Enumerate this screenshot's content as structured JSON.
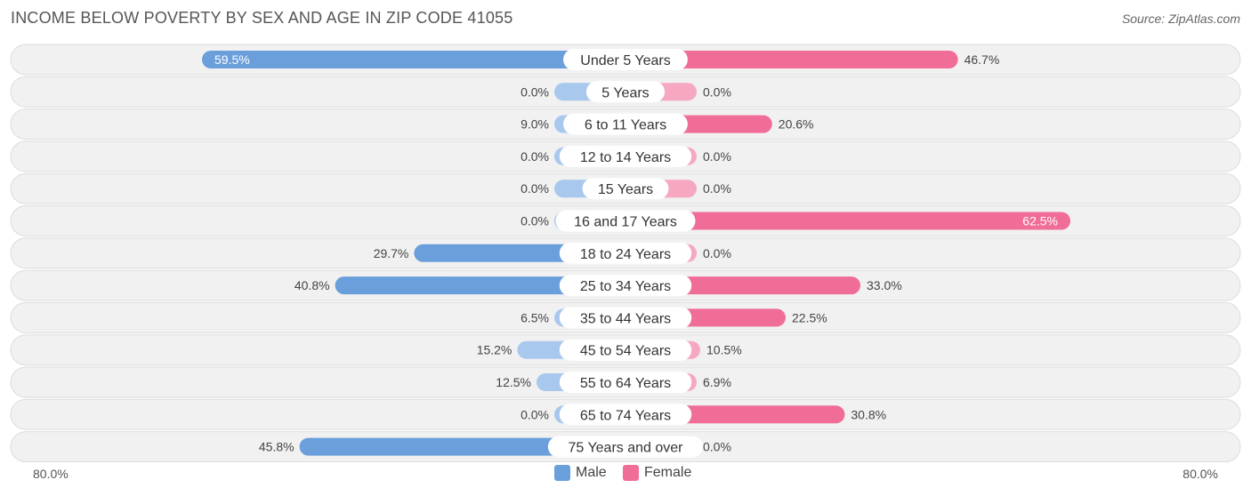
{
  "title": "INCOME BELOW POVERTY BY SEX AND AGE IN ZIP CODE 41055",
  "source": "Source: ZipAtlas.com",
  "colors": {
    "male": "#6a9fdc",
    "male_light": "#a9c8ee",
    "female": "#f06d97",
    "female_light": "#f6a8c1",
    "row_bg": "#f1f1f1",
    "row_border": "#dcdcdc"
  },
  "axis": {
    "left_label": "80.0%",
    "right_label": "80.0%"
  },
  "legend": {
    "male_label": "Male",
    "female_label": "Female"
  },
  "chart_data": {
    "type": "bar",
    "orientation": "horizontal-diverging",
    "xlim": [
      -80,
      80
    ],
    "categories": [
      "Under 5 Years",
      "5 Years",
      "6 to 11 Years",
      "12 to 14 Years",
      "15 Years",
      "16 and 17 Years",
      "18 to 24 Years",
      "25 to 34 Years",
      "35 to 44 Years",
      "45 to 54 Years",
      "55 to 64 Years",
      "65 to 74 Years",
      "75 Years and over"
    ],
    "series": [
      {
        "name": "Male",
        "values": [
          59.5,
          0.0,
          9.0,
          0.0,
          0.0,
          0.0,
          29.7,
          40.8,
          6.5,
          15.2,
          12.5,
          0.0,
          45.8
        ],
        "labels": [
          "59.5%",
          "0.0%",
          "9.0%",
          "0.0%",
          "0.0%",
          "0.0%",
          "29.7%",
          "40.8%",
          "6.5%",
          "15.2%",
          "12.5%",
          "0.0%",
          "45.8%"
        ]
      },
      {
        "name": "Female",
        "values": [
          46.7,
          0.0,
          20.6,
          0.0,
          0.0,
          62.5,
          0.0,
          33.0,
          22.5,
          10.5,
          6.9,
          30.8,
          0.0
        ],
        "labels": [
          "46.7%",
          "0.0%",
          "20.6%",
          "0.0%",
          "0.0%",
          "62.5%",
          "0.0%",
          "33.0%",
          "22.5%",
          "10.5%",
          "6.9%",
          "30.8%",
          "0.0%"
        ]
      }
    ]
  }
}
